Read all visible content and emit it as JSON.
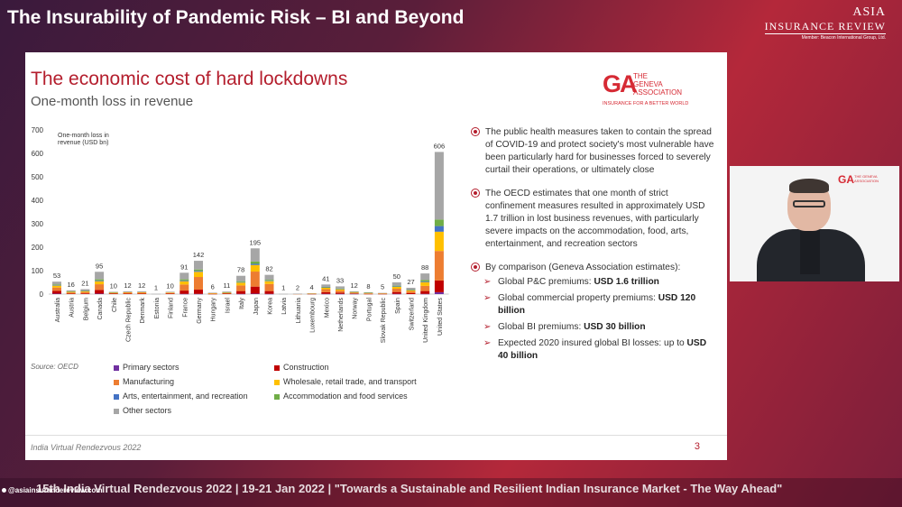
{
  "header": {
    "title": "The Insurability of Pandemic Risk – BI and Beyond",
    "logo_line1": "ASIA",
    "logo_line2": "INSURANCE REVIEW",
    "logo_line3": "Member: Beacon International Group, Ltd."
  },
  "slide": {
    "title": "The economic cost of hard lockdowns",
    "subtitle": "One-month loss in revenue",
    "logo_mark": "GA",
    "logo_name_line1": "THE",
    "logo_name_line2": "GENEVA",
    "logo_name_line3": "ASSOCIATION",
    "logo_tagline": "INSURANCE FOR A BETTER WORLD",
    "source": "Source: OECD",
    "footer": "India Virtual Rendezvous 2022",
    "page_number": "3",
    "bullets": [
      "The public health measures taken to contain the spread of COVID-19 and protect society's most vulnerable have been particularly hard for businesses forced to severely curtail their operations, or ultimately close",
      "The OECD estimates that one month of strict confinement measures resulted in approximately USD 1.7 trillion in lost business revenues, with particularly severe impacts on the accommodation, food, arts, entertainment, and recreation sectors",
      "By comparison (Geneva Association estimates):"
    ],
    "sub_bullets": [
      {
        "text": "Global P&C premiums: ",
        "bold": "USD 1.6 trillion"
      },
      {
        "text": "Global commercial property premiums: ",
        "bold": "USD 120 billion"
      },
      {
        "text": "Global BI premiums: ",
        "bold": "USD 30 billion"
      },
      {
        "text": "Expected 2020 insured global BI losses: up to ",
        "bold": "USD 40 billion"
      }
    ]
  },
  "chart_data": {
    "type": "bar",
    "stacked": true,
    "ylabel": "One-month loss in revenue (USD bn)",
    "ylim": [
      0,
      700
    ],
    "yticks": [
      0,
      100,
      200,
      300,
      400,
      500,
      600,
      700
    ],
    "categories": [
      "Australia",
      "Austria",
      "Belgium",
      "Canada",
      "Chile",
      "Czech Republic",
      "Denmark",
      "Estonia",
      "Finland",
      "France",
      "Germany",
      "Hungary",
      "Israel",
      "Italy",
      "Japan",
      "Korea",
      "Latvia",
      "Lithuania",
      "Luxembourg",
      "Mexico",
      "Netherlands",
      "Norway",
      "Portugal",
      "Slovak Republic",
      "Spain",
      "Switzerland",
      "United Kingdom",
      "United States"
    ],
    "totals": [
      53,
      16,
      21,
      95,
      10,
      12,
      12,
      1,
      10,
      91,
      142,
      6,
      11,
      78,
      195,
      82,
      1,
      2,
      4,
      41,
      33,
      12,
      8,
      5,
      50,
      27,
      88,
      606
    ],
    "series": [
      {
        "name": "Primary sectors",
        "color": "#7030a0",
        "values": [
          2,
          0,
          0,
          2,
          0,
          0,
          0,
          0,
          0,
          1,
          1,
          0,
          0,
          1,
          2,
          1,
          0,
          0,
          0,
          1,
          1,
          1,
          0,
          0,
          1,
          0,
          1,
          8
        ]
      },
      {
        "name": "Construction",
        "color": "#c00000",
        "values": [
          12,
          2,
          3,
          16,
          2,
          2,
          2,
          0,
          2,
          14,
          18,
          1,
          2,
          12,
          30,
          12,
          0,
          0,
          1,
          7,
          5,
          2,
          1,
          1,
          8,
          4,
          12,
          50
        ]
      },
      {
        "name": "Manufacturing",
        "color": "#ed7d31",
        "values": [
          14,
          5,
          6,
          24,
          3,
          4,
          4,
          0,
          3,
          26,
          54,
          2,
          3,
          24,
          64,
          30,
          0,
          1,
          1,
          13,
          9,
          3,
          2,
          2,
          14,
          8,
          22,
          126
        ]
      },
      {
        "name": "Wholesale, retail trade, and transport",
        "color": "#ffc000",
        "values": [
          8,
          3,
          4,
          13,
          2,
          2,
          2,
          0,
          2,
          14,
          22,
          1,
          2,
          12,
          28,
          12,
          0,
          0,
          1,
          7,
          6,
          2,
          2,
          1,
          8,
          5,
          16,
          82
        ]
      },
      {
        "name": "Arts, entertainment, and recreation",
        "color": "#4472c4",
        "values": [
          2,
          0,
          1,
          3,
          0,
          0,
          0,
          0,
          0,
          3,
          4,
          0,
          0,
          2,
          5,
          2,
          0,
          0,
          0,
          1,
          1,
          0,
          0,
          0,
          2,
          1,
          3,
          24
        ]
      },
      {
        "name": "Accommodation and food services",
        "color": "#70ad47",
        "values": [
          3,
          1,
          1,
          5,
          1,
          0,
          0,
          0,
          0,
          5,
          6,
          0,
          1,
          4,
          10,
          4,
          0,
          0,
          0,
          2,
          2,
          1,
          1,
          0,
          3,
          1,
          6,
          28
        ]
      },
      {
        "name": "Other sectors",
        "color": "#a6a6a6",
        "values": [
          12,
          5,
          6,
          32,
          2,
          4,
          4,
          1,
          3,
          28,
          37,
          2,
          3,
          23,
          56,
          21,
          1,
          1,
          1,
          10,
          9,
          3,
          2,
          1,
          14,
          8,
          28,
          288
        ]
      }
    ]
  },
  "speaker": {
    "logo_mark": "GA",
    "logo_text": "THE GENEVA ASSOCIATION"
  },
  "ticker": {
    "text": "15th India Virtual Rendezvous 2022  |  19-21 Jan 2022  |  \"Towards a Sustainable and Resilient Indian Insurance Market - The Way Ahead\"",
    "handle": "@asiainsurancereview.com"
  }
}
